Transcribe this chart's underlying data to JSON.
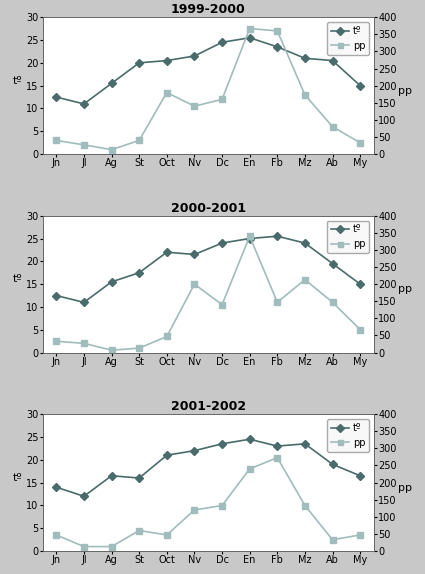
{
  "months": [
    "Jn",
    "Jl",
    "Ag",
    "St",
    "Oct",
    "Nv",
    "Dc",
    "En",
    "Fb",
    "Mz",
    "Ab",
    "My"
  ],
  "periods": [
    {
      "title": "1999-2000",
      "temp": [
        12.5,
        11.0,
        15.5,
        20.0,
        20.5,
        21.5,
        24.5,
        25.5,
        23.5,
        21.0,
        20.5,
        15.0
      ],
      "pp": [
        40,
        27,
        13,
        40,
        180,
        140,
        160,
        367,
        360,
        173,
        80,
        33
      ]
    },
    {
      "title": "2000-2001",
      "temp": [
        12.5,
        11.0,
        15.5,
        17.5,
        22.0,
        21.5,
        24.0,
        25.0,
        25.5,
        24.0,
        19.5,
        15.0
      ],
      "pp": [
        33,
        27,
        7,
        13,
        47,
        200,
        140,
        340,
        147,
        213,
        147,
        67
      ]
    },
    {
      "title": "2001-2002",
      "temp": [
        14.0,
        12.0,
        16.5,
        16.0,
        21.0,
        22.0,
        23.5,
        24.5,
        23.0,
        23.5,
        19.0,
        16.5
      ],
      "pp": [
        47,
        13,
        13,
        60,
        47,
        120,
        133,
        240,
        273,
        133,
        33,
        47
      ]
    }
  ],
  "temp_color": "#4a6b6b",
  "pp_color": "#a0bcbc",
  "temp_marker": "D",
  "pp_marker": "s",
  "ylim_left": [
    0,
    30
  ],
  "ylim_right": [
    0,
    400
  ],
  "yticks_left": [
    0,
    5,
    10,
    15,
    20,
    25,
    30
  ],
  "yticks_right": [
    0,
    50,
    100,
    150,
    200,
    250,
    300,
    350,
    400
  ],
  "ylabel_left": "tº",
  "ylabel_right": "pp",
  "bg_color": "#ffffff",
  "fig_bg_color": "#c8c8c8",
  "title_fontsize": 9,
  "label_fontsize": 8,
  "tick_fontsize": 7,
  "legend_temp": "tº",
  "legend_pp": "pp",
  "marker_size": 4,
  "line_width": 1.2
}
